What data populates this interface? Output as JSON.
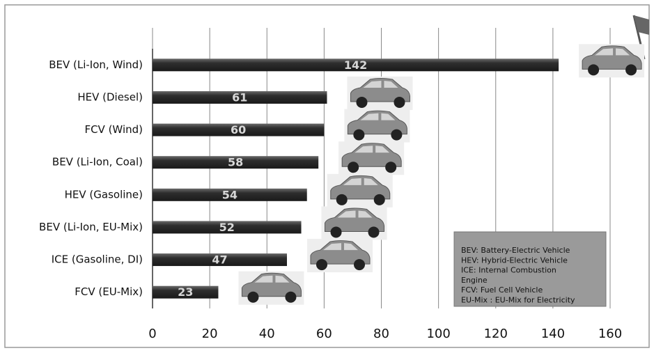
{
  "chart_data": {
    "type": "bar",
    "orientation": "horizontal",
    "categories": [
      "BEV (Li-Ion, Wind)",
      "HEV (Diesel)",
      "FCV (Wind)",
      "BEV (Li-Ion, Coal)",
      "HEV (Gasoline)",
      "BEV (Li-Ion, EU-Mix)",
      "ICE (Gasoline, DI)",
      "FCV (EU-Mix)"
    ],
    "values": [
      142,
      61,
      60,
      58,
      54,
      52,
      47,
      23
    ],
    "color": "#3a3a3a",
    "xlim": [
      0,
      160
    ],
    "xticks": [
      0,
      20,
      40,
      60,
      80,
      100,
      120,
      140,
      160
    ],
    "grid": true,
    "legend_notes": [
      "BEV: Battery-Electric Vehicle",
      "HEV: Hybrid-Electric Vehicle",
      "ICE: Internal Combustion",
      "Engine",
      "FCV: Fuel Cell Vehicle",
      "EU-Mix : EU-Mix for Electricity"
    ]
  }
}
